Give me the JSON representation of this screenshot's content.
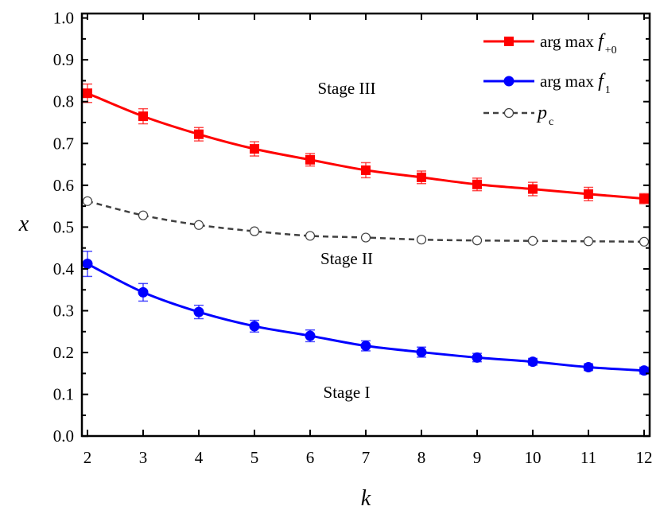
{
  "chart_data": {
    "type": "line",
    "title": "",
    "xlabel": "k",
    "ylabel": "x",
    "xlim": [
      1.9,
      12.1
    ],
    "ylim": [
      0.0,
      1.0
    ],
    "x_ticks": [
      "2",
      "3",
      "4",
      "5",
      "6",
      "7",
      "8",
      "9",
      "10",
      "11",
      "12"
    ],
    "y_ticks": [
      "0.0",
      "0.1",
      "0.2",
      "0.3",
      "0.4",
      "0.5",
      "0.6",
      "0.7",
      "0.8",
      "0.9",
      "1.0"
    ],
    "grid": false,
    "legend_position": "top-right",
    "x": [
      2,
      3,
      4,
      5,
      6,
      7,
      8,
      9,
      10,
      11,
      12
    ],
    "series": [
      {
        "name_main": "arg max ",
        "name_italic": "f",
        "name_sub": "+0",
        "color": "#ff0000",
        "marker": "square",
        "line": "solid",
        "values": [
          0.82,
          0.765,
          0.722,
          0.687,
          0.661,
          0.636,
          0.619,
          0.602,
          0.591,
          0.579,
          0.568
        ],
        "errors": [
          0.022,
          0.018,
          0.016,
          0.017,
          0.015,
          0.018,
          0.015,
          0.015,
          0.016,
          0.016,
          0.012
        ]
      },
      {
        "name_main": "arg max ",
        "name_italic": "f",
        "name_sub": "1",
        "color": "#0000ff",
        "marker": "circle",
        "line": "solid",
        "values": [
          0.412,
          0.344,
          0.297,
          0.263,
          0.24,
          0.216,
          0.201,
          0.188,
          0.178,
          0.165,
          0.157
        ],
        "errors": [
          0.03,
          0.021,
          0.016,
          0.014,
          0.014,
          0.012,
          0.012,
          0.01,
          0.008,
          0.008,
          0.008
        ]
      },
      {
        "name_main": "",
        "name_italic": "p",
        "name_sub": "c",
        "color": "#404040",
        "marker": "open-circle",
        "line": "dashed",
        "values": [
          0.562,
          0.528,
          0.505,
          0.49,
          0.479,
          0.475,
          0.47,
          0.468,
          0.467,
          0.466,
          0.465
        ],
        "errors": null
      }
    ],
    "annotations": [
      {
        "text": "Stage III",
        "x": 5.9,
        "y": 0.81
      },
      {
        "text": "Stage II",
        "x": 5.85,
        "y": 0.42
      },
      {
        "text": "Stage I",
        "x": 5.85,
        "y": 0.1
      }
    ]
  }
}
